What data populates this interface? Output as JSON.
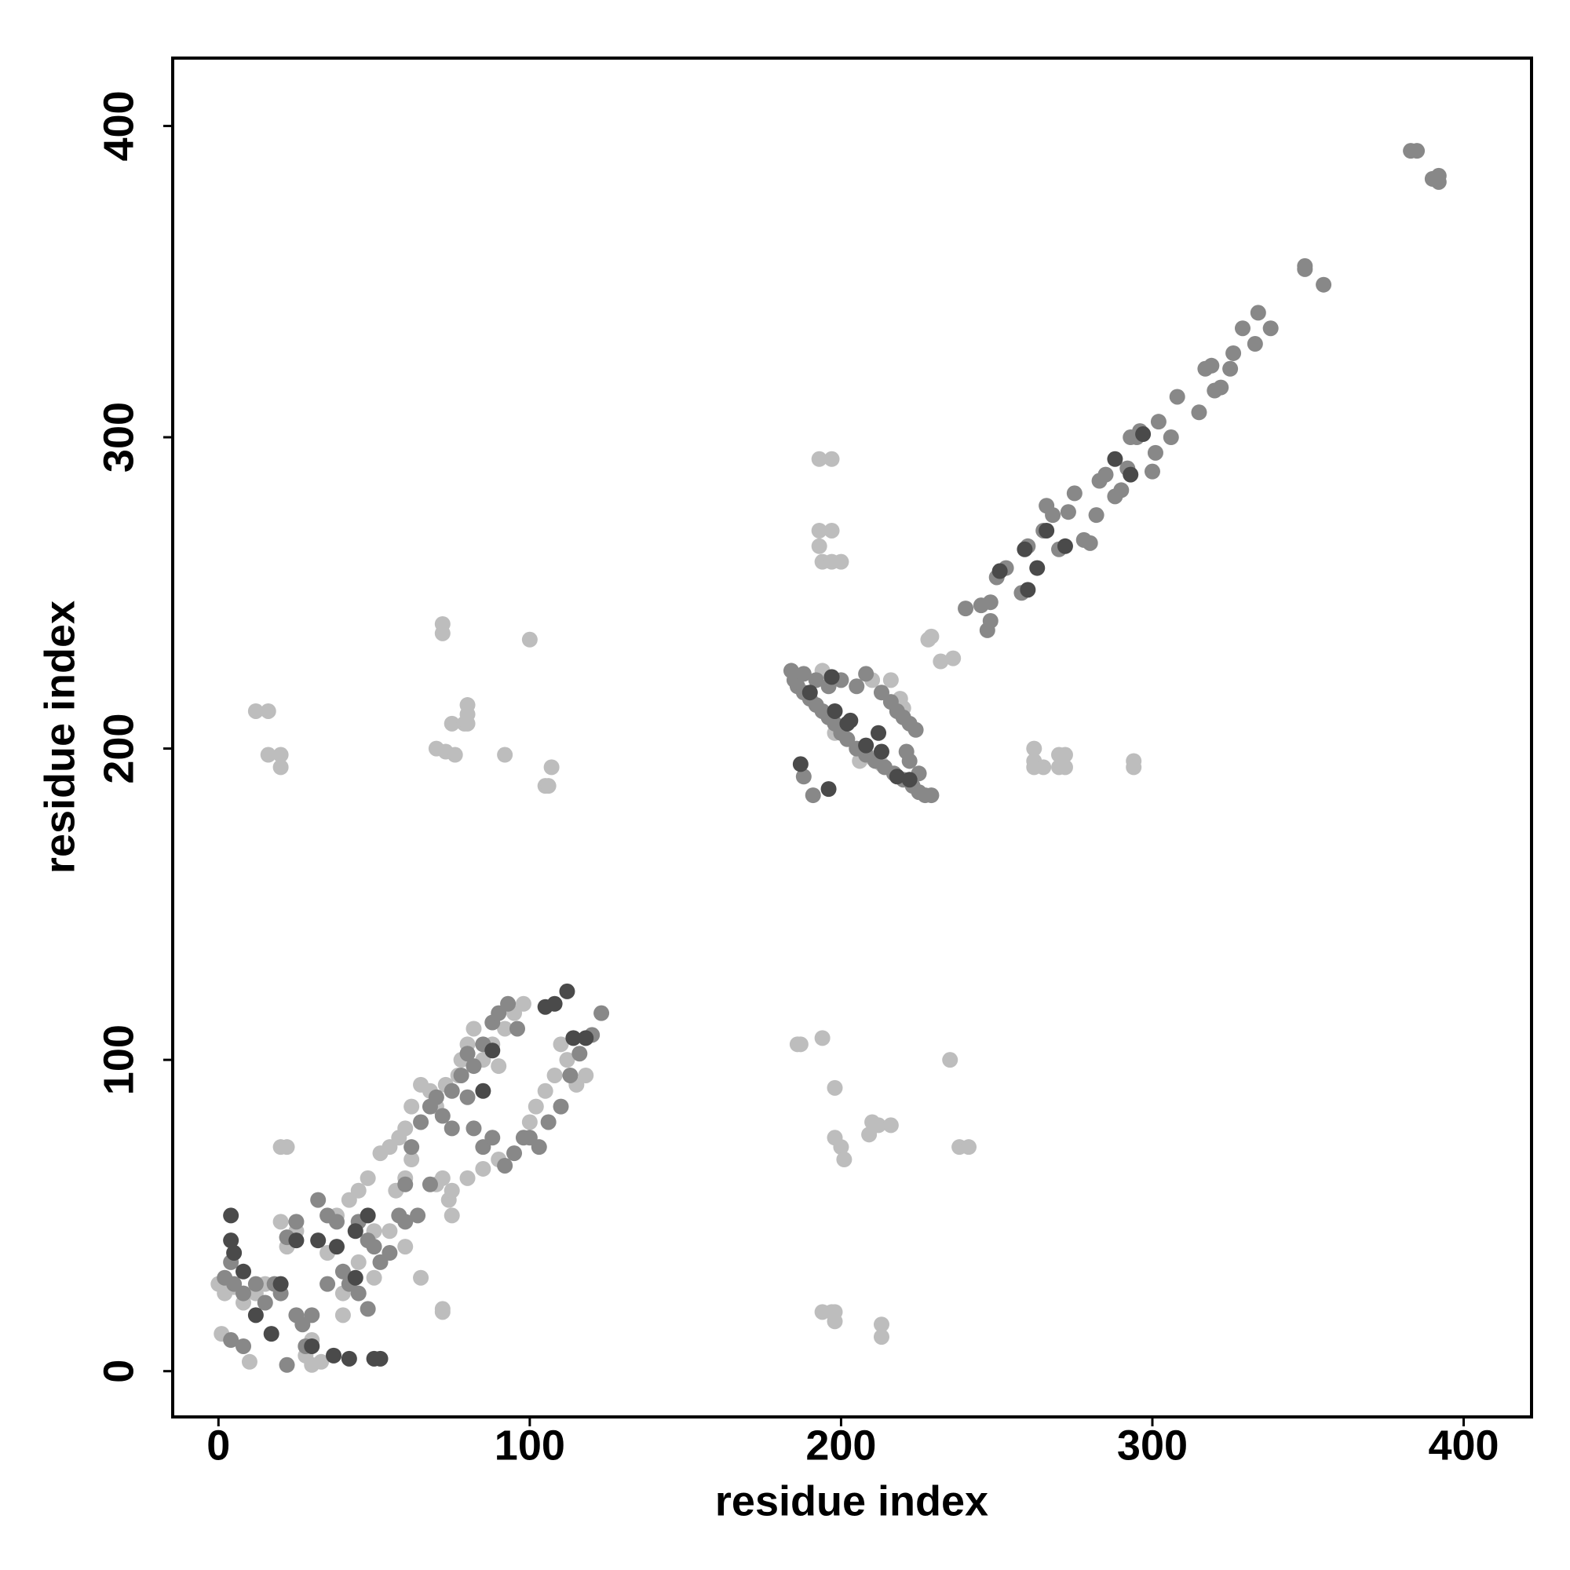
{
  "chart_data": {
    "type": "scatter",
    "x_label": "residue index",
    "y_label": "residue index",
    "xlim": [
      -14.7,
      421.8
    ],
    "ylim": [
      -14.7,
      421.8
    ],
    "xticks": [
      0,
      100,
      200,
      300,
      400
    ],
    "yticks": [
      0,
      100,
      200,
      300,
      400
    ],
    "grid": false,
    "series": [
      {
        "color": "#bdbdbd",
        "x": [
          12,
          16,
          16,
          20,
          20,
          72,
          72,
          70,
          73,
          76,
          75,
          79,
          80,
          80,
          80,
          92,
          100,
          105,
          106,
          107,
          186,
          187,
          194,
          198,
          198,
          200,
          201,
          209,
          210,
          212,
          216,
          235,
          238,
          241,
          194,
          197,
          198,
          198,
          213,
          213,
          193,
          197,
          193,
          197,
          193,
          194,
          197,
          200,
          262,
          262,
          262,
          265,
          270,
          270,
          272,
          272,
          294,
          294,
          232,
          236,
          228,
          229,
          72,
          72,
          20,
          22,
          194,
          198,
          210,
          216,
          219,
          220,
          210,
          213,
          206,
          0,
          1,
          2,
          5,
          8,
          10,
          12,
          15,
          20,
          22,
          25,
          28,
          30,
          30,
          33,
          35,
          38,
          40,
          42,
          45,
          48,
          50,
          52,
          55,
          58,
          60,
          62,
          65,
          68,
          70,
          72,
          74,
          75,
          78,
          80,
          82,
          85,
          88,
          90,
          92,
          95,
          98,
          100,
          102,
          105,
          108,
          110,
          112,
          115,
          118,
          85,
          90,
          80,
          75,
          70,
          65,
          60,
          55,
          50,
          45,
          40,
          60,
          62,
          57,
          73,
          77
        ],
        "y": [
          212,
          212,
          198,
          198,
          194,
          240,
          237,
          200,
          199,
          198,
          208,
          208,
          214,
          211,
          208,
          198,
          235,
          188,
          188,
          194,
          105,
          105,
          107,
          91,
          75,
          72,
          68,
          76,
          80,
          79,
          79,
          100,
          72,
          72,
          19,
          19,
          16,
          19,
          15,
          11,
          293,
          293,
          270,
          270,
          265,
          260,
          260,
          260,
          200,
          196,
          194,
          194,
          198,
          194,
          194,
          198,
          196,
          194,
          228,
          229,
          235,
          236,
          19,
          20,
          72,
          72,
          225,
          205,
          222,
          222,
          216,
          213,
          197,
          195,
          196,
          28,
          12,
          25,
          27,
          22,
          3,
          25,
          28,
          48,
          40,
          45,
          5,
          2,
          10,
          3,
          38,
          50,
          25,
          55,
          58,
          62,
          45,
          70,
          72,
          75,
          78,
          85,
          92,
          90,
          85,
          62,
          55,
          50,
          100,
          105,
          110,
          100,
          105,
          98,
          110,
          115,
          118,
          80,
          85,
          90,
          95,
          105,
          100,
          92,
          95,
          65,
          68,
          62,
          58,
          60,
          30,
          40,
          45,
          30,
          35,
          18,
          62,
          68,
          58,
          92,
          95
        ]
      },
      {
        "color": "#888888",
        "x": [
          245,
          248,
          240,
          250,
          253,
          258,
          260,
          265,
          266,
          268,
          270,
          273,
          275,
          278,
          280,
          282,
          283,
          285,
          288,
          290,
          292,
          293,
          295,
          296,
          300,
          301,
          302,
          306,
          308,
          315,
          317,
          319,
          320,
          322,
          325,
          326,
          329,
          333,
          334,
          338,
          349,
          349,
          355,
          383,
          385,
          390,
          392,
          392,
          247,
          248,
          184,
          185,
          186,
          188,
          190,
          192,
          194,
          196,
          198,
          200,
          202,
          205,
          208,
          211,
          214,
          217,
          220,
          223,
          225,
          227,
          229,
          188,
          192,
          196,
          200,
          205,
          208,
          213,
          216,
          218,
          220,
          222,
          224,
          221,
          222,
          225,
          188,
          191,
          2,
          4,
          5,
          8,
          12,
          15,
          18,
          20,
          22,
          25,
          27,
          28,
          30,
          32,
          35,
          38,
          40,
          42,
          45,
          48,
          50,
          52,
          55,
          58,
          60,
          62,
          65,
          68,
          70,
          72,
          75,
          78,
          80,
          82,
          85,
          88,
          90,
          93,
          96,
          100,
          103,
          106,
          110,
          113,
          116,
          120,
          123,
          82,
          85,
          88,
          92,
          95,
          98,
          80,
          75,
          68,
          64,
          60,
          45,
          48,
          35,
          4,
          8,
          25,
          22
        ],
        "y": [
          246,
          247,
          245,
          255,
          258,
          250,
          265,
          270,
          278,
          275,
          264,
          276,
          282,
          267,
          266,
          275,
          286,
          288,
          281,
          283,
          290,
          300,
          300,
          302,
          289,
          295,
          305,
          300,
          313,
          308,
          322,
          323,
          315,
          316,
          322,
          327,
          335,
          330,
          340,
          335,
          355,
          354,
          349,
          392,
          392,
          383,
          384,
          382,
          238,
          241,
          225,
          222,
          220,
          218,
          216,
          214,
          212,
          210,
          208,
          205,
          203,
          200,
          198,
          196,
          194,
          192,
          190,
          188,
          186,
          185,
          185,
          224,
          222,
          220,
          222,
          220,
          224,
          218,
          215,
          212,
          210,
          208,
          206,
          199,
          196,
          192,
          191,
          185,
          30,
          35,
          28,
          25,
          28,
          22,
          28,
          25,
          43,
          48,
          15,
          8,
          18,
          55,
          50,
          48,
          32,
          28,
          25,
          42,
          40,
          35,
          38,
          50,
          60,
          72,
          80,
          85,
          88,
          82,
          90,
          95,
          102,
          98,
          105,
          112,
          115,
          118,
          110,
          75,
          72,
          80,
          85,
          95,
          102,
          108,
          115,
          78,
          72,
          75,
          66,
          70,
          75,
          88,
          78,
          60,
          50,
          48,
          48,
          20,
          28,
          10,
          8,
          18,
          2
        ]
      },
      {
        "color": "#4a4a4a",
        "x": [
          251,
          259,
          263,
          266,
          272,
          288,
          293,
          297,
          260,
          196,
          187,
          190,
          198,
          203,
          208,
          212,
          213,
          218,
          222,
          197,
          202,
          4,
          4,
          5,
          8,
          12,
          17,
          20,
          25,
          32,
          37,
          42,
          44,
          50,
          52,
          30,
          48,
          85,
          88,
          105,
          108,
          114,
          118,
          112,
          44,
          38
        ],
        "y": [
          257,
          264,
          258,
          270,
          265,
          293,
          288,
          301,
          251,
          187,
          195,
          218,
          212,
          209,
          201,
          205,
          199,
          191,
          190,
          223,
          208,
          50,
          42,
          38,
          32,
          18,
          12,
          28,
          42,
          42,
          5,
          4,
          30,
          4,
          4,
          8,
          50,
          90,
          103,
          117,
          118,
          107,
          107,
          122,
          45,
          40
        ]
      }
    ]
  }
}
